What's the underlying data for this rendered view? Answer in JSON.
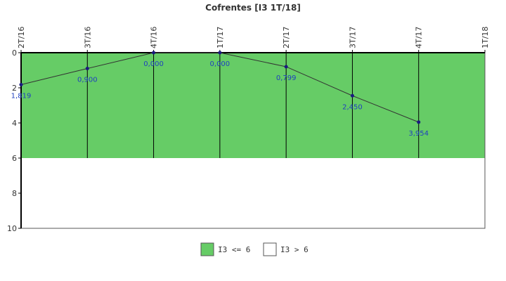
{
  "chart_data": {
    "type": "line",
    "title": "Cofrentes [I3 1T/18]",
    "categories": [
      "2T/16",
      "3T/16",
      "4T/16",
      "1T/17",
      "2T/17",
      "3T/17",
      "4T/17",
      "1T/18"
    ],
    "series": [
      {
        "values": [
          1.819,
          0.9,
          0.0,
          0.0,
          0.799,
          2.45,
          3.954,
          null
        ],
        "labels": [
          "1,819",
          "0,900",
          "0,000",
          "0,000",
          "0,799",
          "2,450",
          "3,954",
          ""
        ]
      }
    ],
    "ylim": [
      0,
      10
    ],
    "y_inverted": true,
    "yticks": [
      "0",
      "2",
      "4",
      "6",
      "8",
      "10"
    ],
    "threshold": 6,
    "bands": [
      {
        "label": "I3 <= 6",
        "from": 0,
        "to": 6,
        "color": "#66cc66"
      },
      {
        "label": "I3 > 6",
        "from": 6,
        "to": 10,
        "color": "#ffffff"
      }
    ],
    "line_color": "#333333",
    "marker_color": "#1a1a80",
    "label_color": "#1f3fbf",
    "legend_position": "bottom-center"
  }
}
